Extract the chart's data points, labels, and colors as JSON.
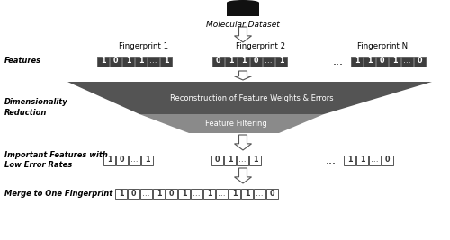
{
  "bg_color": "#ffffff",
  "dark_cell_color": "#3d3d3d",
  "white_cell_color": "#ffffff",
  "cell_text_dark": "#ffffff",
  "cell_text_light": "#333333",
  "fp1_bits": [
    "1",
    "0",
    "1",
    "1",
    "...",
    "1"
  ],
  "fp2_bits": [
    "0",
    "1",
    "1",
    "0",
    "...",
    "1"
  ],
  "fpN_bits": [
    "1",
    "1",
    "0",
    "1",
    "...",
    "0"
  ],
  "imp1_bits": [
    "1",
    "0",
    "...",
    "1"
  ],
  "imp2_bits": [
    "0",
    "1",
    "...",
    "1"
  ],
  "impN_bits": [
    "1",
    "1",
    "...",
    "0"
  ],
  "merged_bits": [
    "1",
    "0",
    "...",
    "1",
    "0",
    "1",
    "...",
    "1",
    "...",
    "1",
    "1",
    "...",
    "0"
  ],
  "funnel_dark": "#545454",
  "funnel_light": "#8a8a8a",
  "funnel_text_color": "#ffffff",
  "arrow_fill": "#ffffff",
  "arrow_edge": "#555555",
  "label_fontsize": 6.0,
  "bit_fontsize": 5.8,
  "fp_label_fontsize": 6.2
}
